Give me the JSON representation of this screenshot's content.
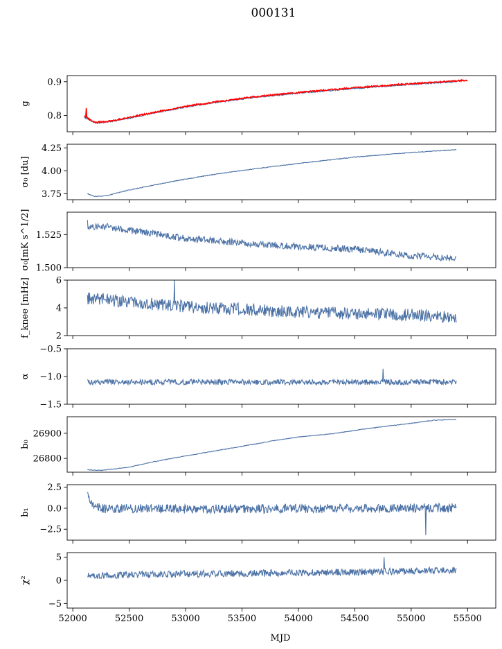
{
  "figure": {
    "title": "000131"
  },
  "chart_data": {
    "type": "line",
    "title": "000131",
    "xlabel": "MJD",
    "xlim": [
      51950,
      55750
    ],
    "xticks": [
      52000,
      52500,
      53000,
      53500,
      54000,
      54500,
      55000,
      55500
    ],
    "line_color": "#4c72a6",
    "highlight_color": "#ff0000",
    "panels": [
      {
        "name": "g",
        "ylabel": "g",
        "ylim": [
          0.752,
          0.918
        ],
        "yticks": [
          {
            "v": 0.8,
            "label": "0.8"
          },
          {
            "v": 0.9,
            "label": "0.9"
          }
        ],
        "series": [
          {
            "kind": "blue",
            "points": [
              [
                52100,
                0.795
              ],
              [
                52200,
                0.778
              ],
              [
                52300,
                0.78
              ],
              [
                52500,
                0.792
              ],
              [
                52700,
                0.806
              ],
              [
                53000,
                0.825
              ],
              [
                53300,
                0.84
              ],
              [
                53600,
                0.853
              ],
              [
                54000,
                0.866
              ],
              [
                54500,
                0.88
              ],
              [
                55000,
                0.892
              ],
              [
                55400,
                0.9
              ]
            ],
            "noise": 0.002
          },
          {
            "kind": "red",
            "points": [
              [
                52100,
                0.798
              ],
              [
                52200,
                0.78
              ],
              [
                52300,
                0.782
              ],
              [
                52500,
                0.794
              ],
              [
                52700,
                0.808
              ],
              [
                53000,
                0.827
              ],
              [
                53300,
                0.842
              ],
              [
                53600,
                0.855
              ],
              [
                54000,
                0.868
              ],
              [
                54500,
                0.882
              ],
              [
                55000,
                0.894
              ],
              [
                55500,
                0.904
              ]
            ],
            "noise": 0.002,
            "spike": [
              52120,
              0.822
            ]
          }
        ]
      },
      {
        "name": "sigma0-du",
        "ylabel": "σ₀ [du]",
        "ylim": [
          3.685,
          4.29
        ],
        "yticks": [
          {
            "v": 3.75,
            "label": "3.75"
          },
          {
            "v": 4.0,
            "label": "4.00"
          },
          {
            "v": 4.25,
            "label": "4.25"
          }
        ],
        "series": [
          {
            "kind": "blue",
            "points": [
              [
                52130,
                3.75
              ],
              [
                52200,
                3.72
              ],
              [
                52300,
                3.73
              ],
              [
                52500,
                3.79
              ],
              [
                52700,
                3.84
              ],
              [
                53000,
                3.91
              ],
              [
                53300,
                3.97
              ],
              [
                53600,
                4.02
              ],
              [
                54000,
                4.08
              ],
              [
                54500,
                4.15
              ],
              [
                55000,
                4.2
              ],
              [
                55400,
                4.23
              ]
            ],
            "noise": 0.004
          }
        ]
      },
      {
        "name": "sigma0-mks",
        "ylabel": "σ₀[mK s^1/2]",
        "ylim": [
          1.5,
          1.542
        ],
        "yticks": [
          {
            "v": 1.5,
            "label": "1.500"
          },
          {
            "v": 1.525,
            "label": "1.525"
          }
        ],
        "series": [
          {
            "kind": "blue",
            "points": [
              [
                52130,
                1.531
              ],
              [
                52300,
                1.531
              ],
              [
                52500,
                1.528
              ],
              [
                52700,
                1.526
              ],
              [
                53000,
                1.522
              ],
              [
                53300,
                1.52
              ],
              [
                53600,
                1.518
              ],
              [
                54000,
                1.516
              ],
              [
                54500,
                1.514
              ],
              [
                55000,
                1.509
              ],
              [
                55400,
                1.507
              ]
            ],
            "noise": 0.0025,
            "spike": [
              52130,
              1.536
            ]
          }
        ]
      },
      {
        "name": "fknee",
        "ylabel": "f_knee [mHz]",
        "ylim": [
          2,
          6
        ],
        "yticks": [
          {
            "v": 2,
            "label": "2"
          },
          {
            "v": 4,
            "label": "4"
          },
          {
            "v": 6,
            "label": "6"
          }
        ],
        "series": [
          {
            "kind": "blue",
            "points": [
              [
                52130,
                4.7
              ],
              [
                52500,
                4.4
              ],
              [
                53000,
                4.1
              ],
              [
                53500,
                3.9
              ],
              [
                54000,
                3.7
              ],
              [
                54500,
                3.6
              ],
              [
                55000,
                3.5
              ],
              [
                55400,
                3.3
              ]
            ],
            "noise": 0.45,
            "spike": [
              52900,
              6.0
            ]
          }
        ]
      },
      {
        "name": "alpha",
        "ylabel": "α",
        "ylim": [
          -1.5,
          -0.5
        ],
        "yticks": [
          {
            "v": -1.5,
            "label": "−1.5"
          },
          {
            "v": -1.0,
            "label": "−1.0"
          },
          {
            "v": -0.5,
            "label": "−0.5"
          }
        ],
        "series": [
          {
            "kind": "blue",
            "points": [
              [
                52130,
                -1.1
              ],
              [
                53000,
                -1.1
              ],
              [
                54000,
                -1.1
              ],
              [
                55000,
                -1.1
              ],
              [
                55400,
                -1.1
              ]
            ],
            "noise": 0.05,
            "spike": [
              54750,
              -0.86
            ]
          }
        ]
      },
      {
        "name": "b0",
        "ylabel": "b₀",
        "ylim": [
          26745,
          26966
        ],
        "yticks": [
          {
            "v": 26800,
            "label": "26800"
          },
          {
            "v": 26900,
            "label": "26900"
          }
        ],
        "series": [
          {
            "kind": "blue",
            "points": [
              [
                52130,
                26755
              ],
              [
                52250,
                26752
              ],
              [
                52500,
                26765
              ],
              [
                52700,
                26785
              ],
              [
                52900,
                26802
              ],
              [
                53200,
                26825
              ],
              [
                53500,
                26848
              ],
              [
                53800,
                26872
              ],
              [
                54000,
                26885
              ],
              [
                54300,
                26898
              ],
              [
                54600,
                26918
              ],
              [
                55000,
                26940
              ],
              [
                55200,
                26952
              ],
              [
                55400,
                26955
              ]
            ],
            "noise": 1.2
          }
        ]
      },
      {
        "name": "b1",
        "ylabel": "b₁",
        "ylim": [
          -3.8,
          2.8
        ],
        "yticks": [
          {
            "v": -2.5,
            "label": "−2.5"
          },
          {
            "v": 0.0,
            "label": "0.0"
          },
          {
            "v": 2.5,
            "label": "2.5"
          }
        ],
        "series": [
          {
            "kind": "blue",
            "points": [
              [
                52130,
                2.2
              ],
              [
                52160,
                0.5
              ],
              [
                52250,
                0.0
              ],
              [
                53000,
                -0.1
              ],
              [
                54000,
                -0.05
              ],
              [
                55000,
                0.0
              ],
              [
                55400,
                0.05
              ]
            ],
            "noise": 0.55,
            "spike": [
              55130,
              -3.2
            ]
          }
        ]
      },
      {
        "name": "chi2",
        "ylabel": "χ²",
        "ylim": [
          -6,
          6
        ],
        "yticks": [
          {
            "v": -5,
            "label": "−5"
          },
          {
            "v": 0,
            "label": "0"
          },
          {
            "v": 5,
            "label": "5"
          }
        ],
        "series": [
          {
            "kind": "blue",
            "points": [
              [
                52130,
                1.0
              ],
              [
                53000,
                1.4
              ],
              [
                54000,
                1.6
              ],
              [
                55000,
                2.0
              ],
              [
                55400,
                2.2
              ]
            ],
            "noise": 0.75,
            "spike": [
              54760,
              5.0
            ]
          }
        ]
      }
    ]
  }
}
